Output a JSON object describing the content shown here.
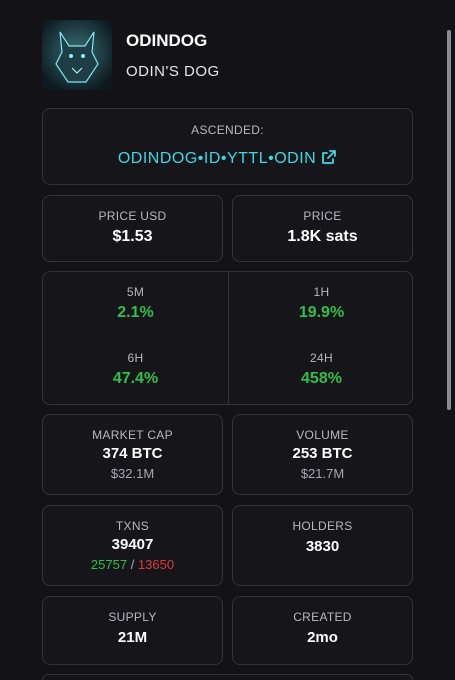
{
  "header": {
    "title": "ODINDOG",
    "subtitle": "ODIN'S DOG"
  },
  "ascended": {
    "label": "ASCENDED:",
    "link": "ODINDOG•ID•YTTL•ODIN"
  },
  "price_usd": {
    "label": "PRICE USD",
    "value": "$1.53"
  },
  "price": {
    "label": "PRICE",
    "value": "1.8K sats"
  },
  "changes": [
    {
      "label": "5M",
      "value": "2.1%"
    },
    {
      "label": "1H",
      "value": "19.9%"
    },
    {
      "label": "6H",
      "value": "47.4%"
    },
    {
      "label": "24H",
      "value": "458%"
    }
  ],
  "market_cap": {
    "label": "MARKET CAP",
    "value": "374 BTC",
    "sub": "$32.1M"
  },
  "volume": {
    "label": "VOLUME",
    "value": "253 BTC",
    "sub": "$21.7M"
  },
  "txns": {
    "label": "TXNS",
    "value": "39407",
    "buys": "25757",
    "separator": "/",
    "sells": "13650"
  },
  "holders": {
    "label": "HOLDERS",
    "value": "3830"
  },
  "supply": {
    "label": "SUPPLY",
    "value": "21M"
  },
  "created": {
    "label": "CREATED",
    "value": "2mo"
  }
}
